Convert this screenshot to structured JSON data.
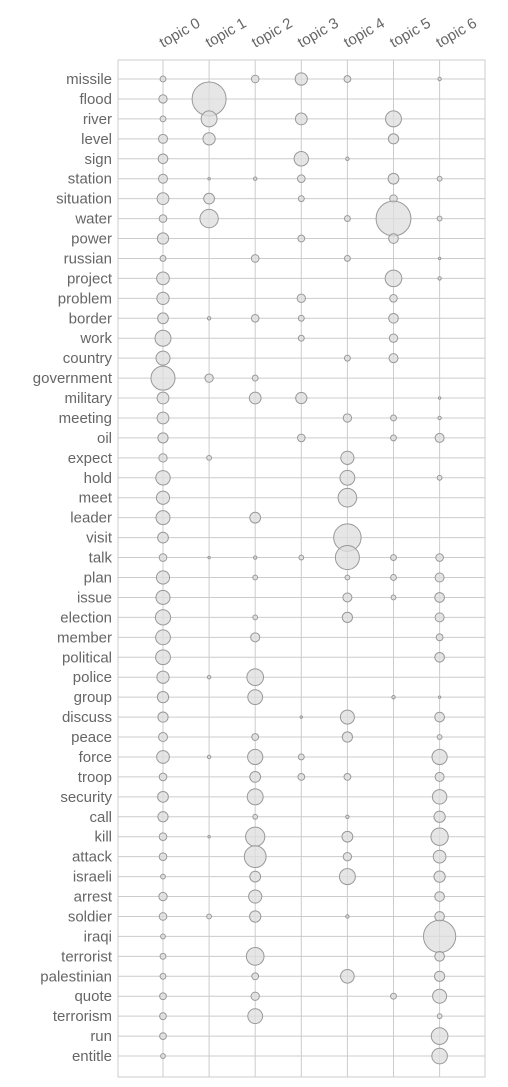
{
  "chart_data": {
    "type": "scatter",
    "topics": [
      "topic 0",
      "topic 1",
      "topic 2",
      "topic 3",
      "topic 4",
      "topic 5",
      "topic 6"
    ],
    "terms": [
      "missile",
      "flood",
      "river",
      "level",
      "sign",
      "station",
      "situation",
      "water",
      "power",
      "russian",
      "project",
      "problem",
      "border",
      "work",
      "country",
      "government",
      "military",
      "meeting",
      "oil",
      "expect",
      "hold",
      "meet",
      "leader",
      "visit",
      "talk",
      "plan",
      "issue",
      "election",
      "member",
      "political",
      "police",
      "group",
      "discuss",
      "peace",
      "force",
      "troop",
      "security",
      "call",
      "kill",
      "attack",
      "israeli",
      "arrest",
      "soldier",
      "iraqi",
      "terrorist",
      "palestinian",
      "quote",
      "terrorism",
      "run",
      "entitle"
    ],
    "weights": [
      [
        0.03,
        0,
        0.05,
        0.13,
        0.04,
        0,
        0.01
      ],
      [
        0.06,
        1.0,
        0,
        0,
        0,
        0,
        0
      ],
      [
        0.03,
        0.22,
        0,
        0.12,
        0,
        0.22,
        0
      ],
      [
        0.07,
        0.13,
        0,
        0,
        0,
        0.09,
        0
      ],
      [
        0.08,
        0,
        0,
        0.18,
        0.01,
        0,
        0
      ],
      [
        0.07,
        0.005,
        0.01,
        0.05,
        0,
        0.1,
        0.02
      ],
      [
        0.12,
        0.1,
        0,
        0.03,
        0,
        0.05,
        0
      ],
      [
        0.05,
        0.29,
        0,
        0,
        0.03,
        1.05,
        0.02
      ],
      [
        0.11,
        0,
        0,
        0.04,
        0,
        0.08,
        0
      ],
      [
        0.03,
        0,
        0.05,
        0,
        0.03,
        0,
        0.005
      ],
      [
        0.14,
        0,
        0,
        0,
        0,
        0.24,
        0.01
      ],
      [
        0.13,
        0,
        0,
        0.06,
        0,
        0.05,
        0
      ],
      [
        0.1,
        0.01,
        0.05,
        0.03,
        0,
        0.08,
        0
      ],
      [
        0.22,
        0,
        0,
        0.03,
        0,
        0.06,
        0
      ],
      [
        0.17,
        0,
        0,
        0,
        0.03,
        0.07,
        0
      ],
      [
        0.5,
        0.06,
        0.03,
        0,
        0,
        0,
        0
      ],
      [
        0.12,
        0,
        0.12,
        0.11,
        0,
        0,
        0.005
      ],
      [
        0.12,
        0,
        0,
        0,
        0.06,
        0.03,
        0.01
      ],
      [
        0.09,
        0,
        0,
        0.05,
        0,
        0.03,
        0.07
      ],
      [
        0.06,
        0.02,
        0,
        0,
        0.15,
        0,
        0
      ],
      [
        0.18,
        0,
        0,
        0,
        0.19,
        0,
        0.02
      ],
      [
        0.15,
        0,
        0,
        0,
        0.3,
        0,
        0
      ],
      [
        0.17,
        0,
        0.1,
        0,
        0,
        0,
        0
      ],
      [
        0.1,
        0,
        0,
        0,
        0.65,
        0,
        0
      ],
      [
        0.05,
        0.005,
        0.01,
        0.02,
        0.5,
        0.03,
        0.05
      ],
      [
        0.15,
        0,
        0.02,
        0,
        0.02,
        0.03,
        0.07
      ],
      [
        0.17,
        0,
        0,
        0,
        0.07,
        0.02,
        0.08
      ],
      [
        0.2,
        0,
        0.02,
        0,
        0.09,
        0,
        0.07
      ],
      [
        0.19,
        0,
        0.07,
        0,
        0,
        0,
        0.04
      ],
      [
        0.19,
        0,
        0,
        0,
        0,
        0,
        0.08
      ],
      [
        0.13,
        0.01,
        0.24,
        0,
        0,
        0,
        0
      ],
      [
        0.11,
        0,
        0.19,
        0,
        0,
        0.01,
        0.005
      ],
      [
        0.09,
        0,
        0,
        0.005,
        0.17,
        0,
        0.08
      ],
      [
        0.07,
        0,
        0.04,
        0,
        0.09,
        0,
        0.02
      ],
      [
        0.14,
        0.01,
        0.2,
        0.03,
        0,
        0,
        0.2
      ],
      [
        0.05,
        0,
        0.1,
        0.04,
        0.04,
        0,
        0.07
      ],
      [
        0.1,
        0,
        0.22,
        0,
        0,
        0,
        0.18
      ],
      [
        0.09,
        0,
        0.02,
        0,
        0.01,
        0,
        0.11
      ],
      [
        0.05,
        0.005,
        0.32,
        0,
        0.1,
        0,
        0.26
      ],
      [
        0.05,
        0,
        0.41,
        0,
        0.06,
        0,
        0.14
      ],
      [
        0.02,
        0,
        0.1,
        0,
        0.22,
        0,
        0.11
      ],
      [
        0.06,
        0,
        0.15,
        0,
        0,
        0,
        0.08
      ],
      [
        0.05,
        0.02,
        0.11,
        0,
        0.01,
        0,
        0.08
      ],
      [
        0.02,
        0,
        0,
        0,
        0,
        0,
        0.9
      ],
      [
        0.03,
        0,
        0.27,
        0,
        0,
        0,
        0.08
      ],
      [
        0.03,
        0,
        0.04,
        0,
        0.16,
        0,
        0.09
      ],
      [
        0.04,
        0,
        0.06,
        0,
        0,
        0.03,
        0.17
      ],
      [
        0.04,
        0,
        0.19,
        0,
        0,
        0,
        0.02
      ],
      [
        0.04,
        0,
        0,
        0,
        0,
        0,
        0.24
      ],
      [
        0.02,
        0,
        0,
        0,
        0,
        0,
        0.21
      ]
    ],
    "grid": true,
    "title": "",
    "xlabel": "",
    "ylabel": ""
  }
}
